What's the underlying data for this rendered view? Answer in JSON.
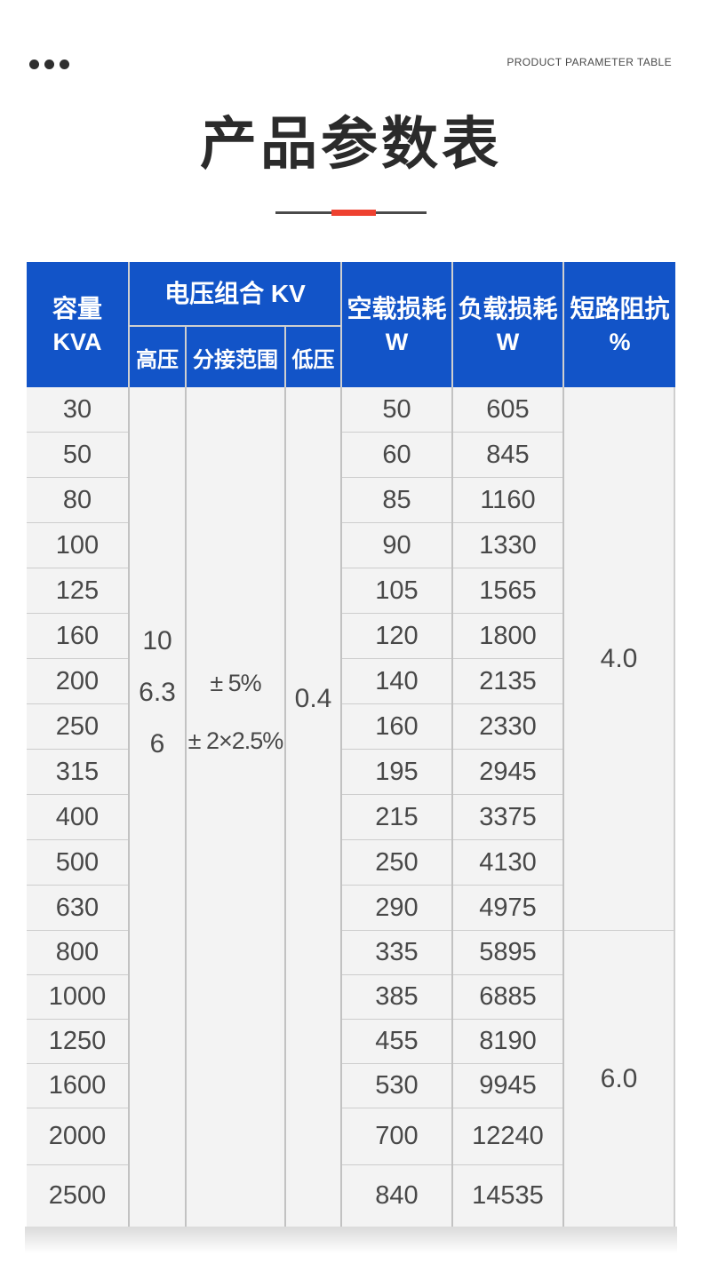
{
  "header": {
    "top_right_label": "PRODUCT PARAMETER TABLE"
  },
  "title": {
    "text": "产品参数表"
  },
  "table": {
    "columns": {
      "capacity": {
        "line1": "容量",
        "line2": "KVA"
      },
      "voltage_combination": "电压组合 KV",
      "high_voltage": "高压",
      "tap_range": "分接范围",
      "low_voltage": "低压",
      "no_load_loss": {
        "line1": "空载损耗",
        "line2": "W"
      },
      "load_loss": {
        "line1": "负载损耗",
        "line2": "W"
      },
      "short_circuit_impedance": {
        "line1": "短路阻抗",
        "line2": "%"
      }
    },
    "merged_values": {
      "high_voltage": [
        "10",
        "6.3",
        "6"
      ],
      "tap_range": [
        "± 5%",
        "± 2×2.5%"
      ],
      "low_voltage": "0.4",
      "impedance_top": "4.0",
      "impedance_bottom": "6.0"
    },
    "rows": {
      "capacity_kva": [
        "30",
        "50",
        "80",
        "100",
        "125",
        "160",
        "200",
        "250",
        "315",
        "400",
        "500",
        "630",
        "800",
        "1000",
        "1250",
        "1600",
        "2000",
        "2500"
      ],
      "no_load_loss_w": [
        "50",
        "60",
        "85",
        "90",
        "105",
        "120",
        "140",
        "160",
        "195",
        "215",
        "250",
        "290",
        "335",
        "385",
        "455",
        "530",
        "700",
        "840"
      ],
      "load_loss_w": [
        "605",
        "845",
        "1160",
        "1330",
        "1565",
        "1800",
        "2135",
        "2330",
        "2945",
        "3375",
        "4130",
        "4975",
        "5895",
        "6885",
        "8190",
        "9945",
        "12240",
        "14535"
      ]
    }
  },
  "colors": {
    "header_blue": "#1254c8",
    "accent_red": "#ee4130",
    "divider_dark": "#4a4a4a",
    "body_cell_bg": "#f3f3f3"
  }
}
